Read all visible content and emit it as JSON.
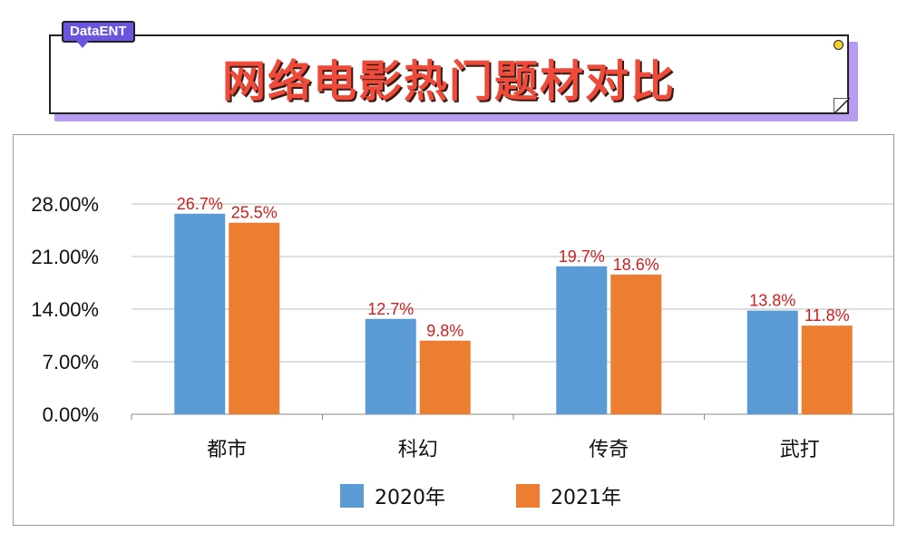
{
  "header": {
    "brand": "DataENT",
    "title": "网络电影热门题材对比"
  },
  "colors": {
    "series_2020": "#5b9bd5",
    "series_2021": "#ed7d31",
    "data_label": "#d01c1c",
    "title": "#ef4a3a",
    "brand_bg": "#6a55e0"
  },
  "chart_data": {
    "type": "bar",
    "categories": [
      "都市",
      "科幻",
      "传奇",
      "武打"
    ],
    "series": [
      {
        "name": "2020年",
        "values": [
          26.7,
          12.7,
          19.7,
          13.8
        ],
        "labels": [
          "26.7%",
          "12.7%",
          "19.7%",
          "13.8%"
        ]
      },
      {
        "name": "2021年",
        "values": [
          25.5,
          9.8,
          18.6,
          11.8
        ],
        "labels": [
          "25.5%",
          "9.8%",
          "18.6%",
          "11.8%"
        ]
      }
    ],
    "yticks": [
      "0.00%",
      "7.00%",
      "14.00%",
      "21.00%",
      "28.00%"
    ],
    "ytick_values": [
      0,
      7,
      14,
      21,
      28
    ],
    "ylim": [
      0,
      28
    ],
    "grid": true,
    "legend_position": "bottom"
  }
}
